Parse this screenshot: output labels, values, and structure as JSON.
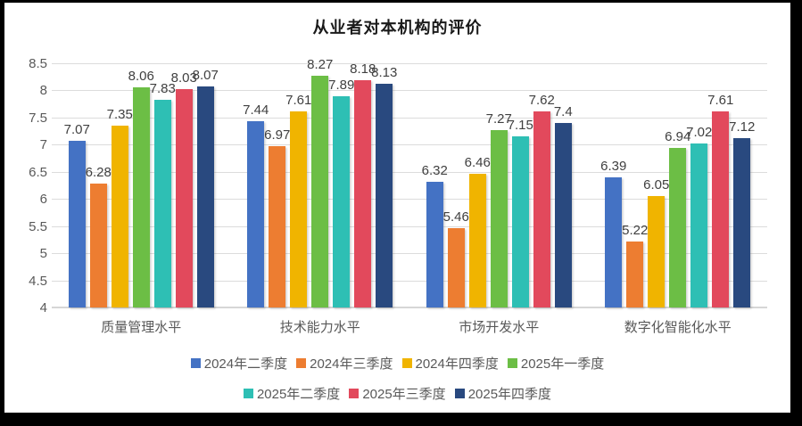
{
  "chart_data": {
    "type": "bar",
    "title": "从业者对本机构的评价",
    "categories": [
      "质量管理水平",
      "技术能力水平",
      "市场开发水平",
      "数字化智能化水平"
    ],
    "series": [
      {
        "name": "2024年二季度",
        "color": "#4472C4",
        "values": [
          7.07,
          7.44,
          6.32,
          6.39
        ]
      },
      {
        "name": "2024年三季度",
        "color": "#ED7D31",
        "values": [
          6.28,
          6.97,
          5.46,
          5.22
        ]
      },
      {
        "name": "2024年四季度",
        "color": "#F0B400",
        "values": [
          7.35,
          7.61,
          6.46,
          6.05
        ]
      },
      {
        "name": "2025年一季度",
        "color": "#6CBE45",
        "values": [
          8.06,
          8.27,
          7.27,
          6.94
        ]
      },
      {
        "name": "2025年二季度",
        "color": "#2EBFB4",
        "values": [
          7.83,
          7.89,
          7.15,
          7.02
        ]
      },
      {
        "name": "2025年三季度",
        "color": "#E2495C",
        "values": [
          8.03,
          8.18,
          7.62,
          7.61
        ]
      },
      {
        "name": "2025年四季度",
        "color": "#29497F",
        "values": [
          8.07,
          8.13,
          7.4,
          7.12
        ]
      }
    ],
    "y_axis": {
      "min": 4,
      "max": 8.5,
      "step": 0.5,
      "ticks": [
        "8.5",
        "8",
        "7.5",
        "7",
        "6.5",
        "6",
        "5.5",
        "5",
        "4.5",
        "4"
      ]
    },
    "grid": true,
    "data_labels": true,
    "legend_position": "bottom",
    "legend_rows": [
      [
        0,
        1,
        2,
        3
      ],
      [
        4,
        5,
        6
      ]
    ]
  }
}
